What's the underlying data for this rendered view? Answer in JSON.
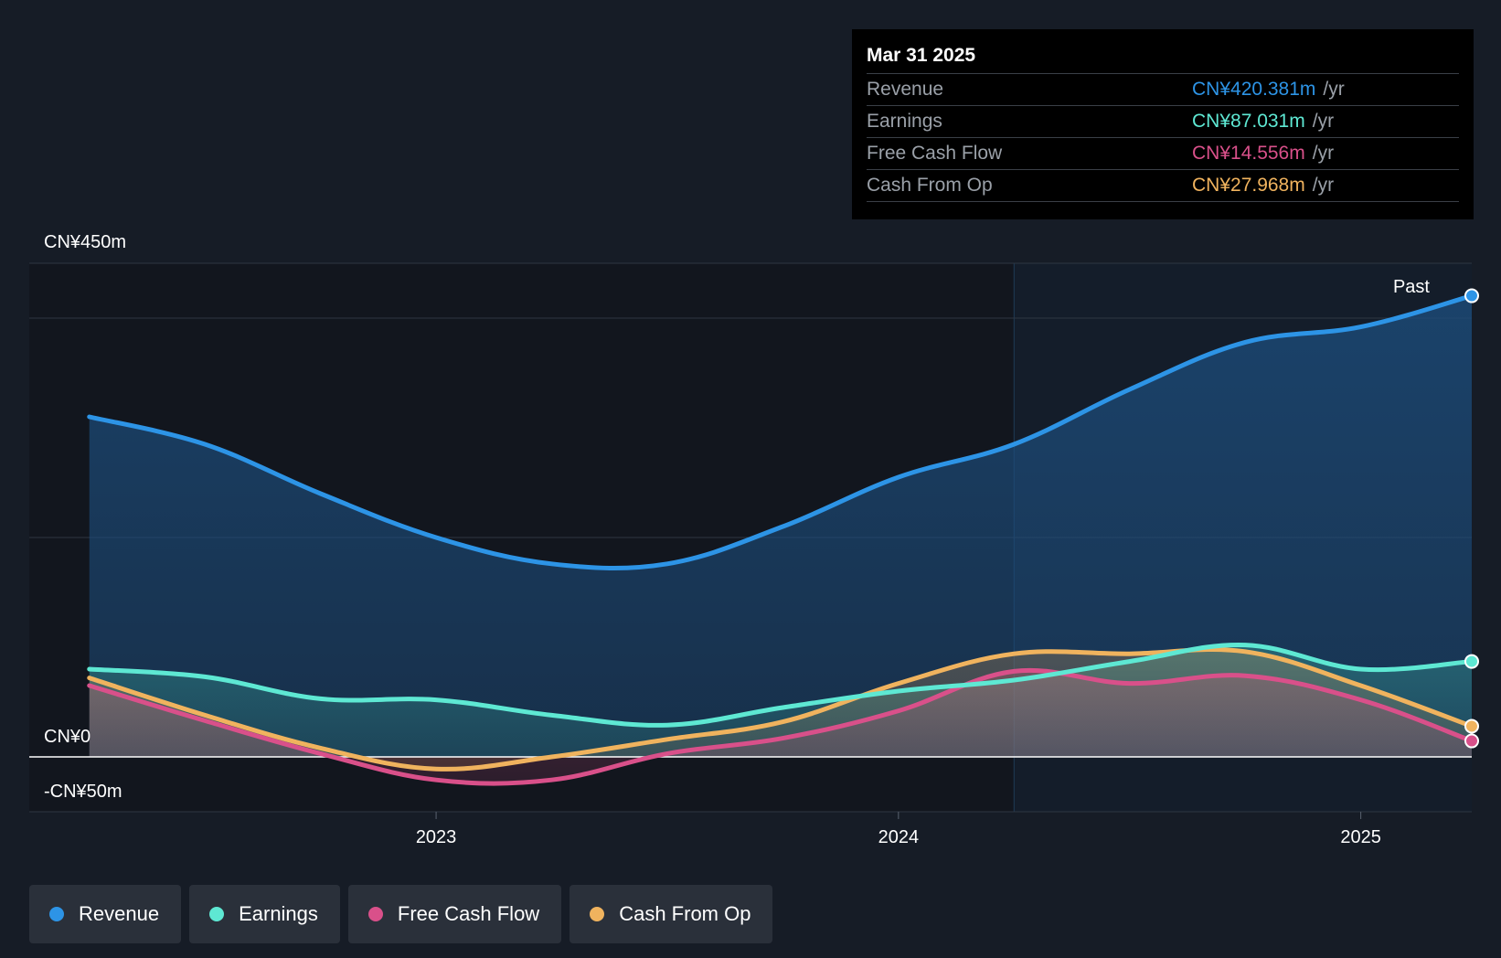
{
  "tooltip": {
    "date": "Mar 31 2025",
    "rows": [
      {
        "label": "Revenue",
        "value": "CN¥420.381m",
        "unit": "/yr",
        "color": "#2d94e6"
      },
      {
        "label": "Earnings",
        "value": "CN¥87.031m",
        "unit": "/yr",
        "color": "#5ee8d3"
      },
      {
        "label": "Free Cash Flow",
        "value": "CN¥14.556m",
        "unit": "/yr",
        "color": "#d9508a"
      },
      {
        "label": "Cash From Op",
        "value": "CN¥27.968m",
        "unit": "/yr",
        "color": "#f0b35e"
      }
    ]
  },
  "legend": [
    {
      "label": "Revenue",
      "color": "#2d94e6"
    },
    {
      "label": "Earnings",
      "color": "#5ee8d3"
    },
    {
      "label": "Free Cash Flow",
      "color": "#d9508a"
    },
    {
      "label": "Cash From Op",
      "color": "#f0b35e"
    }
  ],
  "chart_data": {
    "type": "line",
    "title": "",
    "y_labels": {
      "top": "CN¥450m",
      "zero": "CN¥0",
      "bottom": "-CN¥50m"
    },
    "ylim": [
      -50,
      450
    ],
    "x_ticks": [
      {
        "label": "2023",
        "x": 2023.0
      },
      {
        "label": "2024",
        "x": 2024.0
      },
      {
        "label": "2025",
        "x": 2025.0
      }
    ],
    "xlim": [
      2022.12,
      2025.24
    ],
    "past_label": "Past",
    "past_start": 2024.25,
    "series": [
      {
        "name": "Revenue",
        "color": "#2d94e6",
        "points": [
          [
            2022.25,
            310
          ],
          [
            2022.5,
            285
          ],
          [
            2022.75,
            240
          ],
          [
            2023.0,
            200
          ],
          [
            2023.25,
            176
          ],
          [
            2023.5,
            176
          ],
          [
            2023.75,
            210
          ],
          [
            2024.0,
            255
          ],
          [
            2024.25,
            285
          ],
          [
            2024.5,
            335
          ],
          [
            2024.75,
            378
          ],
          [
            2025.0,
            392
          ],
          [
            2025.24,
            420.381
          ]
        ]
      },
      {
        "name": "Earnings",
        "color": "#5ee8d3",
        "points": [
          [
            2022.25,
            80
          ],
          [
            2022.5,
            73
          ],
          [
            2022.75,
            53
          ],
          [
            2023.0,
            52
          ],
          [
            2023.25,
            38
          ],
          [
            2023.5,
            29
          ],
          [
            2023.75,
            45
          ],
          [
            2024.0,
            60
          ],
          [
            2024.25,
            70
          ],
          [
            2024.5,
            87
          ],
          [
            2024.75,
            102
          ],
          [
            2025.0,
            80
          ],
          [
            2025.24,
            87.031
          ]
        ]
      },
      {
        "name": "Free Cash Flow",
        "color": "#d9508a",
        "points": [
          [
            2022.25,
            65
          ],
          [
            2022.5,
            33
          ],
          [
            2022.75,
            3
          ],
          [
            2023.0,
            -21
          ],
          [
            2023.25,
            -21
          ],
          [
            2023.5,
            3
          ],
          [
            2023.75,
            17
          ],
          [
            2024.0,
            42
          ],
          [
            2024.25,
            78
          ],
          [
            2024.5,
            67
          ],
          [
            2024.75,
            74
          ],
          [
            2025.0,
            52
          ],
          [
            2025.24,
            14.556
          ]
        ]
      },
      {
        "name": "Cash From Op",
        "color": "#f0b35e",
        "points": [
          [
            2022.25,
            72
          ],
          [
            2022.5,
            38
          ],
          [
            2022.75,
            8
          ],
          [
            2023.0,
            -11
          ],
          [
            2023.25,
            0
          ],
          [
            2023.5,
            16
          ],
          [
            2023.75,
            32
          ],
          [
            2024.0,
            67
          ],
          [
            2024.25,
            94
          ],
          [
            2024.5,
            94
          ],
          [
            2024.75,
            96
          ],
          [
            2025.0,
            65
          ],
          [
            2025.24,
            27.968
          ]
        ]
      }
    ]
  }
}
